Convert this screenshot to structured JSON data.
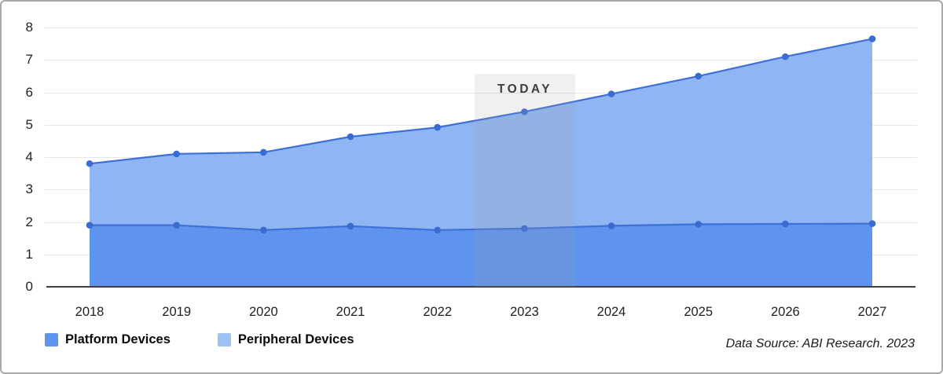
{
  "chart_data": {
    "type": "area",
    "stacked": true,
    "title": "",
    "xlabel": "",
    "ylabel": "",
    "ylim": [
      0,
      8
    ],
    "y_ticks": [
      0,
      1,
      2,
      3,
      4,
      5,
      6,
      7,
      8
    ],
    "grid": true,
    "legend_position": "bottom-left",
    "categories": [
      "2018",
      "2019",
      "2020",
      "2021",
      "2022",
      "2023",
      "2024",
      "2025",
      "2026",
      "2027"
    ],
    "series": [
      {
        "name": "Platform Devices",
        "color": "#5e93ee",
        "values": [
          1.9,
          1.9,
          1.75,
          1.87,
          1.75,
          1.8,
          1.88,
          1.93,
          1.94,
          1.95
        ]
      },
      {
        "name": "Peripheral Devices",
        "color": "#8fb5f3",
        "values": [
          1.9,
          2.2,
          2.4,
          2.76,
          3.17,
          3.6,
          4.07,
          4.57,
          5.16,
          5.7
        ]
      }
    ],
    "stacked_totals": [
      3.8,
      4.1,
      4.15,
      4.63,
      4.92,
      5.4,
      5.95,
      6.5,
      7.1,
      7.65
    ],
    "line_color": "#3e70d8",
    "marker_color": "#3a6bd2",
    "annotation": {
      "label": "TODAY",
      "x": "2023"
    }
  },
  "legend": {
    "swatch_colors": [
      "#5e93ee",
      "#9ec0f5"
    ]
  },
  "footer": {
    "source": "Data Source: ABI Research. 2023"
  }
}
